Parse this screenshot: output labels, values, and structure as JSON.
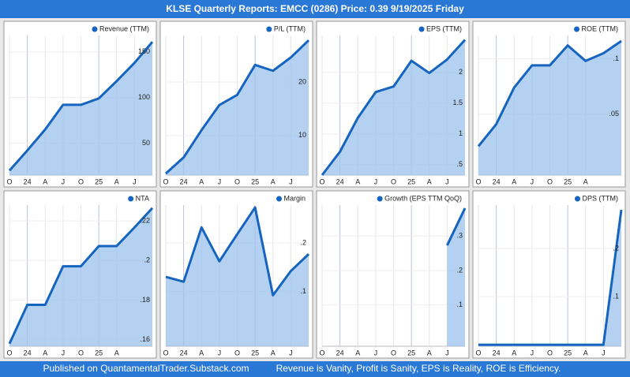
{
  "header": {
    "title": "KLSE Quarterly Reports: EMCC (0286)  Price: 0.39  9/19/2025 Friday"
  },
  "footer": {
    "left": "Published on QuantamentalTrader.Substack.com",
    "right": "Revenue is Vanity, Profit is Sanity, EPS is Reality, ROE is Efficiency."
  },
  "chart_data": [
    {
      "type": "area",
      "title": "Revenue (TTM)",
      "color": "#1565c0",
      "categories": [
        "O",
        "24",
        "A",
        "J",
        "O",
        "25",
        "A",
        "J",
        null
      ],
      "values": [
        20,
        42,
        65,
        92,
        92,
        99,
        118,
        138,
        161
      ],
      "ylim": [
        15,
        168
      ],
      "yticks": [
        50,
        100,
        150
      ],
      "grid": true
    },
    {
      "type": "area",
      "title": "P/L (TTM)",
      "color": "#1565c0",
      "categories": [
        "O",
        "24",
        "A",
        "J",
        "O",
        "25",
        "A",
        "J",
        null
      ],
      "values": [
        2.9,
        5.9,
        11.0,
        15.7,
        17.6,
        23.2,
        22.1,
        24.6,
        27.8
      ],
      "ylim": [
        2.6,
        28.7
      ],
      "yticks": [
        10,
        20
      ],
      "grid": true
    },
    {
      "type": "area",
      "title": "EPS (TTM)",
      "color": "#1565c0",
      "categories": [
        "O",
        "24",
        "A",
        "J",
        "O",
        "25",
        "A",
        "J",
        null
      ],
      "values": [
        0.33,
        0.71,
        1.26,
        1.68,
        1.77,
        2.19,
        1.99,
        2.21,
        2.53
      ],
      "ylim": [
        0.33,
        2.6
      ],
      "yticks": [
        {
          "value": 0.5,
          "label": ".5"
        },
        1,
        1.5,
        2
      ],
      "grid": true
    },
    {
      "type": "area",
      "title": "ROE (TTM)",
      "color": "#1565c0",
      "categories": [
        "O",
        "24",
        "A",
        "J",
        "O",
        "25",
        "A",
        null,
        null
      ],
      "values": [
        0.021,
        0.041,
        0.074,
        0.094,
        0.094,
        0.112,
        0.098,
        0.105,
        0.116
      ],
      "ylim": [
        -0.005,
        0.121
      ],
      "yticks": [
        {
          "value": 0.05,
          "label": ".05"
        },
        {
          "value": 0.1,
          "label": ".1"
        }
      ],
      "grid": true
    },
    {
      "type": "area",
      "title": "NTA",
      "color": "#1565c0",
      "categories": [
        "O",
        "24",
        "A",
        "J",
        "O",
        "25",
        "A",
        null,
        null
      ],
      "values": [
        0.158,
        0.1776,
        0.1776,
        0.1971,
        0.1971,
        0.2073,
        0.2073,
        0.2167,
        0.2265
      ],
      "ylim": [
        0.1567,
        0.228
      ],
      "yticks": [
        {
          "value": 0.16,
          "label": ".16"
        },
        {
          "value": 0.18,
          "label": ".18"
        },
        {
          "value": 0.2,
          "label": ".2"
        },
        {
          "value": 0.22,
          "label": ".22"
        }
      ],
      "grid": true
    },
    {
      "type": "area",
      "title": "Margin",
      "color": "#1565c0",
      "categories": [
        "O",
        "24",
        "A",
        "J",
        "O",
        "25",
        "A",
        "J",
        null
      ],
      "values": [
        0.13,
        0.12,
        0.232,
        0.162,
        0.218,
        0.273,
        0.092,
        0.142,
        0.177
      ],
      "ylim": [
        -0.013,
        0.278
      ],
      "yticks": [
        {
          "value": 0.1,
          "label": ".1"
        },
        {
          "value": 0.2,
          "label": ".2"
        }
      ],
      "grid": true
    },
    {
      "type": "area",
      "title": "Growth (EPS TTM QoQ)",
      "color": "#1565c0",
      "categories": [
        "O",
        "24",
        "A",
        "J",
        "O",
        "25",
        "A",
        "J",
        null
      ],
      "values": [
        null,
        null,
        null,
        null,
        null,
        null,
        null,
        0.273,
        0.381
      ],
      "ylim": [
        -0.02,
        0.39
      ],
      "yticks": [
        {
          "value": 0.1,
          "label": ".1"
        },
        {
          "value": 0.2,
          "label": ".2"
        },
        {
          "value": 0.3,
          "label": ".3"
        }
      ],
      "grid": true
    },
    {
      "type": "area",
      "title": "DPS (TTM)",
      "color": "#1565c0",
      "categories": [
        "O",
        "24",
        "A",
        "J",
        "O",
        "25",
        "A",
        "J",
        null
      ],
      "values": [
        0,
        0,
        0,
        0,
        0,
        0,
        0,
        0,
        0.28
      ],
      "ylim": [
        -0.003,
        0.29
      ],
      "yticks": [
        {
          "value": 0.1,
          "label": ".1"
        },
        {
          "value": 0.2,
          "label": ".2"
        }
      ],
      "grid": true
    }
  ]
}
